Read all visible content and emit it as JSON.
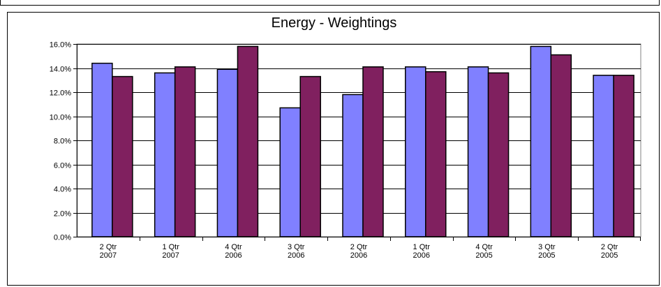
{
  "chart_data": {
    "type": "bar",
    "title": "Energy  -  Weightings",
    "xlabel": "",
    "ylabel": "",
    "categories": [
      [
        "2 Qtr",
        "2007"
      ],
      [
        "1 Qtr",
        "2007"
      ],
      [
        "4 Qtr",
        "2006"
      ],
      [
        "3 Qtr",
        "2006"
      ],
      [
        "2 Qtr",
        "2006"
      ],
      [
        "1 Qtr",
        "2006"
      ],
      [
        "4 Qtr",
        "2005"
      ],
      [
        "3 Qtr",
        "2005"
      ],
      [
        "2 Qtr",
        "2005"
      ]
    ],
    "series": [
      {
        "color": "#8080ff",
        "values": [
          14.4,
          13.6,
          13.9,
          10.7,
          11.8,
          14.1,
          14.1,
          15.8,
          13.4
        ]
      },
      {
        "color": "#80205f",
        "values": [
          13.3,
          14.1,
          15.8,
          13.3,
          14.1,
          13.7,
          13.6,
          15.1,
          13.4
        ]
      }
    ],
    "ylim": [
      0,
      16
    ],
    "yticks": [
      "0.0%",
      "2.0%",
      "4.0%",
      "6.0%",
      "8.0%",
      "10.0%",
      "12.0%",
      "14.0%",
      "16.0%"
    ],
    "grid": true,
    "legend": "none"
  }
}
